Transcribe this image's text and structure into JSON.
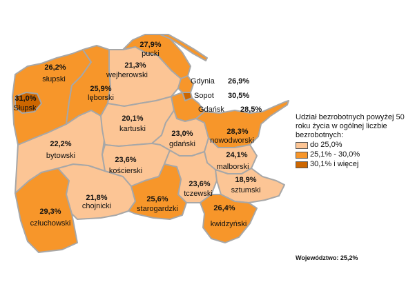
{
  "colors": {
    "low": "#fcc595",
    "mid": "#f7962a",
    "high": "#cc6600",
    "border": "#a7a7a7"
  },
  "regions": [
    {
      "id": "pucki",
      "name": "pucki",
      "value": "27,9%",
      "class": "mid"
    },
    {
      "id": "wejherowski",
      "name": "wejherowski",
      "value": "21,3%",
      "class": "low"
    },
    {
      "id": "slupski",
      "name": "słupski",
      "value": "26,2%",
      "class": "mid"
    },
    {
      "id": "slupsk",
      "name": "Słupsk",
      "value": "31,0%",
      "class": "high"
    },
    {
      "id": "leborski",
      "name": "lęborski",
      "value": "25,9%",
      "class": "mid"
    },
    {
      "id": "kartuski",
      "name": "kartuski",
      "value": "20,1%",
      "class": "low"
    },
    {
      "id": "bytowski",
      "name": "bytowski",
      "value": "22,2%",
      "class": "low"
    },
    {
      "id": "gdanski",
      "name": "gdański",
      "value": "23,0%",
      "class": "low"
    },
    {
      "id": "nowodworski",
      "name": "nowodworski",
      "value": "28,3%",
      "class": "mid"
    },
    {
      "id": "koscierski",
      "name": "kościerski",
      "value": "23,6%",
      "class": "low"
    },
    {
      "id": "malborski",
      "name": "malborski",
      "value": "24,1%",
      "class": "low"
    },
    {
      "id": "tczewski",
      "name": "tczewski",
      "value": "23,6%",
      "class": "low"
    },
    {
      "id": "sztumski",
      "name": "sztumski",
      "value": "18,9%",
      "class": "low"
    },
    {
      "id": "chojnicki",
      "name": "chojnicki",
      "value": "21,8%",
      "class": "low"
    },
    {
      "id": "starogardzki",
      "name": "starogardzki",
      "value": "25,6%",
      "class": "mid"
    },
    {
      "id": "kwidzynski",
      "name": "kwidzyński",
      "value": "26,4%",
      "class": "mid"
    },
    {
      "id": "czluchowski",
      "name": "człuchowski",
      "value": "29,3%",
      "class": "mid"
    }
  ],
  "cities": [
    {
      "id": "gdynia",
      "name": "Gdynia",
      "value": "26,9%",
      "class": "mid"
    },
    {
      "id": "sopot",
      "name": "Sopot",
      "value": "30,5%",
      "class": "high"
    },
    {
      "id": "gdansk",
      "name": "Gdańsk",
      "value": "28,5%",
      "class": "mid"
    }
  ],
  "legend": {
    "title": "Udział bezrobotnych powyżej 50 roku życia w ogólnej liczbie bezrobotnych:",
    "items": [
      {
        "label": "do 25,0%",
        "class": "low"
      },
      {
        "label": "25,1% - 30,0%",
        "class": "mid"
      },
      {
        "label": "30,1% i więcej",
        "class": "high"
      }
    ]
  },
  "footer": "Województwo: 25,2%"
}
